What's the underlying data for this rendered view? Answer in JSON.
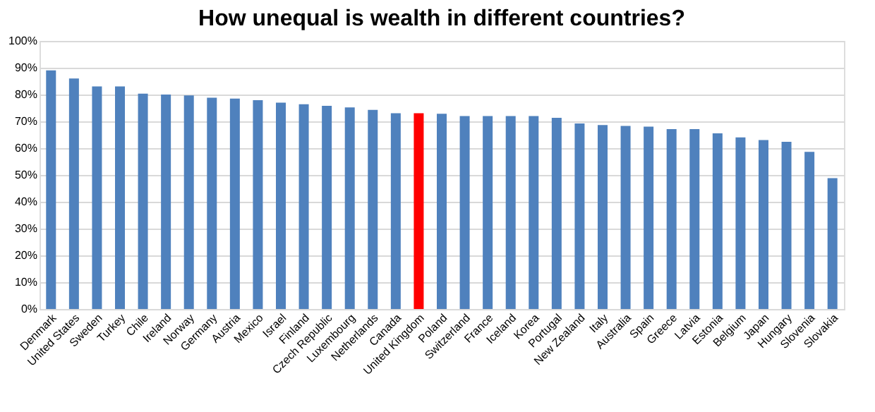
{
  "chart_data": {
    "type": "bar",
    "title": "How unequal is wealth in different countries?",
    "categories": [
      "Denmark",
      "United States",
      "Sweden",
      "Turkey",
      "Chile",
      "Ireland",
      "Norway",
      "Germany",
      "Austria",
      "Mexico",
      "Israel",
      "Finland",
      "Czech Republic",
      "Luxembourg",
      "Netherlands",
      "Canada",
      "United Kingdom",
      "Poland",
      "Switzerland",
      "France",
      "Iceland",
      "Korea",
      "Portugal",
      "New Zealand",
      "Italy",
      "Australia",
      "Spain",
      "Greece",
      "Latvia",
      "Estonia",
      "Belgium",
      "Japan",
      "Hungary",
      "Slovenia",
      "Slovakia"
    ],
    "values": [
      89,
      86,
      83,
      83,
      80.3,
      80,
      79.7,
      78.8,
      78.5,
      77.9,
      77,
      76.4,
      75.8,
      75.2,
      74.3,
      73,
      73,
      72.8,
      72,
      72,
      72,
      72,
      71.3,
      69.2,
      68.6,
      68.3,
      68,
      67.1,
      67.1,
      65.5,
      64,
      63,
      62.4,
      58.6,
      48.8
    ],
    "colors": [
      "#4f81bd",
      "#4f81bd",
      "#4f81bd",
      "#4f81bd",
      "#4f81bd",
      "#4f81bd",
      "#4f81bd",
      "#4f81bd",
      "#4f81bd",
      "#4f81bd",
      "#4f81bd",
      "#4f81bd",
      "#4f81bd",
      "#4f81bd",
      "#4f81bd",
      "#4f81bd",
      "#ff0000",
      "#4f81bd",
      "#4f81bd",
      "#4f81bd",
      "#4f81bd",
      "#4f81bd",
      "#4f81bd",
      "#4f81bd",
      "#4f81bd",
      "#4f81bd",
      "#4f81bd",
      "#4f81bd",
      "#4f81bd",
      "#4f81bd",
      "#4f81bd",
      "#4f81bd",
      "#4f81bd",
      "#4f81bd",
      "#4f81bd"
    ],
    "ylim": [
      0,
      100
    ],
    "yticks": [
      {
        "value": 0,
        "label": "0%"
      },
      {
        "value": 10,
        "label": "10%"
      },
      {
        "value": 20,
        "label": "20%"
      },
      {
        "value": 30,
        "label": "30%"
      },
      {
        "value": 40,
        "label": "40%"
      },
      {
        "value": 50,
        "label": "50%"
      },
      {
        "value": 60,
        "label": "60%"
      },
      {
        "value": 70,
        "label": "70%"
      },
      {
        "value": 80,
        "label": "80%"
      },
      {
        "value": 90,
        "label": "90%"
      },
      {
        "value": 100,
        "label": "100%"
      }
    ],
    "grid": "y",
    "legend": false
  }
}
